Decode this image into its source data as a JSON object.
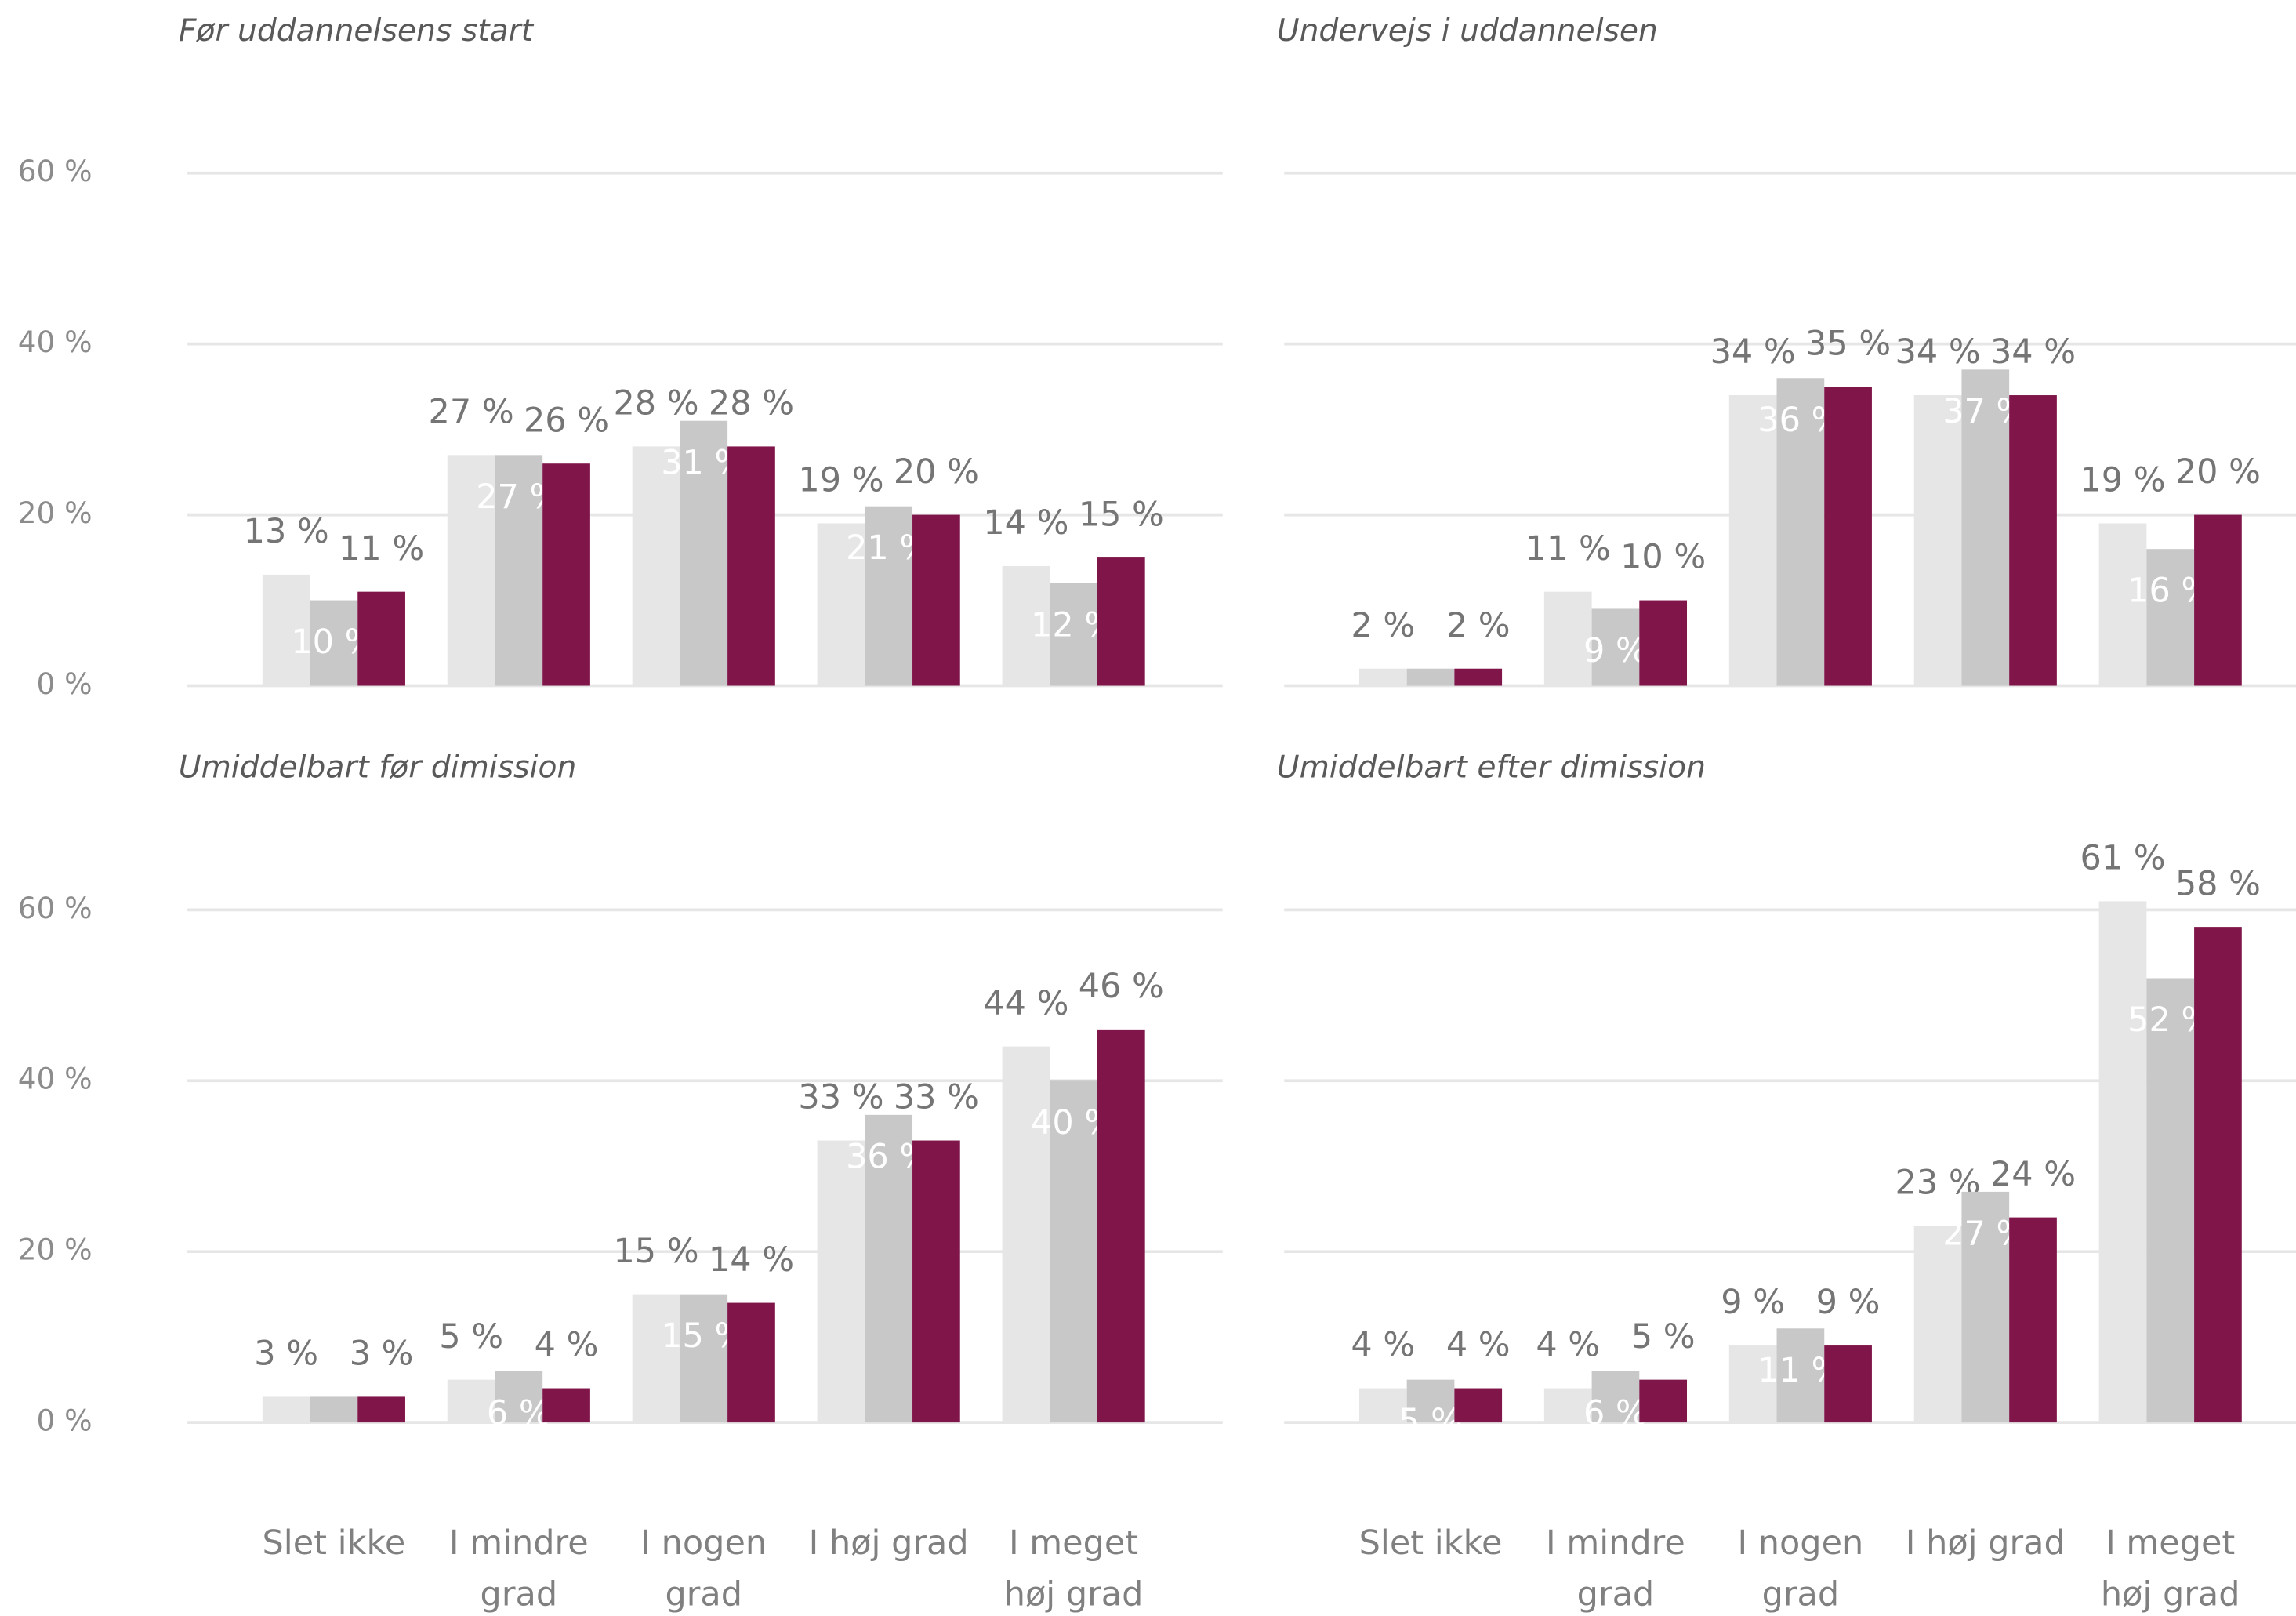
{
  "chart_data": [
    {
      "type": "bar",
      "title": "Før uddannelsens start",
      "series": [
        {
          "color": "#e6e6e6",
          "values": [
            13,
            27,
            28,
            19,
            14
          ],
          "value_labels": [
            "13 %",
            "27 %",
            "28 %",
            "19 %",
            "14 %"
          ]
        },
        {
          "color": "#c8c8c8",
          "values": [
            10,
            27,
            31,
            21,
            12
          ],
          "value_labels": [
            "10 %",
            "27 %",
            "31 %",
            "21 %",
            "12 %"
          ]
        },
        {
          "color": "#80154a",
          "values": [
            11,
            26,
            28,
            20,
            15
          ],
          "value_labels": [
            "11 %",
            "26 %",
            "28 %",
            "20 %",
            "15 %"
          ]
        }
      ],
      "ylim": [
        0,
        60
      ],
      "yticks": [
        {
          "value": 0,
          "label": "0 %"
        },
        {
          "value": 20,
          "label": "20 %"
        },
        {
          "value": 40,
          "label": "40 %"
        },
        {
          "value": 60,
          "label": "60 %"
        }
      ],
      "grid": true
    },
    {
      "type": "bar",
      "title": "Undervejs i uddannelsen",
      "series": [
        {
          "color": "#e6e6e6",
          "values": [
            2,
            11,
            34,
            34,
            19
          ],
          "value_labels": [
            "2 %",
            "11 %",
            "34 %",
            "34 %",
            "19 %"
          ]
        },
        {
          "color": "#c8c8c8",
          "values": [
            2,
            9,
            36,
            37,
            16
          ],
          "value_labels": [
            null,
            "9 %",
            "36 %",
            "37 %",
            "16 %"
          ]
        },
        {
          "color": "#80154a",
          "values": [
            2,
            10,
            35,
            34,
            20
          ],
          "value_labels": [
            "2 %",
            "10 %",
            "35 %",
            "34 %",
            "20 %"
          ]
        }
      ],
      "ylim": [
        0,
        60
      ],
      "yticks": [
        0,
        20,
        40,
        60
      ],
      "grid": true
    },
    {
      "type": "bar",
      "title": "Umiddelbart før dimission",
      "categories": [
        "Slet ikke",
        "I mindre grad",
        "I nogen grad",
        "I høj grad",
        "I meget høj grad"
      ],
      "series": [
        {
          "color": "#e6e6e6",
          "values": [
            3,
            5,
            15,
            33,
            44
          ],
          "value_labels": [
            "3 %",
            "5 %",
            "15 %",
            "33 %",
            "44 %"
          ]
        },
        {
          "color": "#c8c8c8",
          "values": [
            3,
            6,
            15,
            36,
            40
          ],
          "value_labels": [
            null,
            "6 %",
            "15 %",
            "36 %",
            "40 %"
          ]
        },
        {
          "color": "#80154a",
          "values": [
            3,
            4,
            14,
            33,
            46
          ],
          "value_labels": [
            "3 %",
            "4 %",
            "14 %",
            "33 %",
            "46 %"
          ]
        }
      ],
      "ylim": [
        0,
        60
      ],
      "yticks": [
        {
          "value": 0,
          "label": "0 %"
        },
        {
          "value": 20,
          "label": "20 %"
        },
        {
          "value": 40,
          "label": "40 %"
        },
        {
          "value": 60,
          "label": "60 %"
        }
      ],
      "grid": true
    },
    {
      "type": "bar",
      "title": "Umiddelbart efter dimission",
      "categories": [
        "Slet ikke",
        "I mindre grad",
        "I nogen grad",
        "I høj grad",
        "I meget høj grad"
      ],
      "series": [
        {
          "color": "#e6e6e6",
          "values": [
            4,
            4,
            9,
            23,
            61
          ],
          "value_labels": [
            "4 %",
            "4 %",
            "9 %",
            "23 %",
            "61 %"
          ]
        },
        {
          "color": "#c8c8c8",
          "values": [
            5,
            6,
            11,
            27,
            52
          ],
          "value_labels": [
            "5 %",
            "6 %",
            "11 %",
            "27 %",
            "52 %"
          ]
        },
        {
          "color": "#80154a",
          "values": [
            4,
            5,
            9,
            24,
            58
          ],
          "value_labels": [
            "4 %",
            "5 %",
            "9 %",
            "24 %",
            "58 %"
          ]
        }
      ],
      "ylim": [
        0,
        60
      ],
      "yticks": [
        0,
        20,
        40,
        60
      ],
      "grid": true
    }
  ]
}
